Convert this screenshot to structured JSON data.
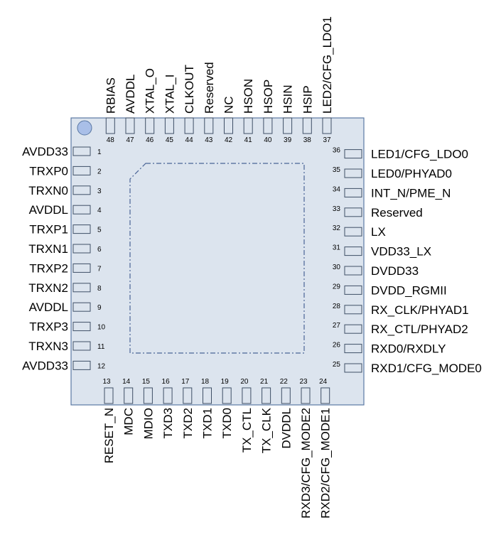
{
  "package": {
    "body_fill": "#dce4ee",
    "body_stroke": "#5a78a3",
    "pad_stroke": "#3f4f66",
    "pin1_marker_fill": "#a9bfe8",
    "exposed_pad_stroke": "#4a6496"
  },
  "pins": {
    "left": [
      {
        "num": "1",
        "name": "AVDD33"
      },
      {
        "num": "2",
        "name": "TRXP0"
      },
      {
        "num": "3",
        "name": "TRXN0"
      },
      {
        "num": "4",
        "name": "AVDDL"
      },
      {
        "num": "5",
        "name": "TRXP1"
      },
      {
        "num": "6",
        "name": "TRXN1"
      },
      {
        "num": "7",
        "name": "TRXP2"
      },
      {
        "num": "8",
        "name": "TRXN2"
      },
      {
        "num": "9",
        "name": "AVDDL"
      },
      {
        "num": "10",
        "name": "TRXP3"
      },
      {
        "num": "11",
        "name": "TRXN3"
      },
      {
        "num": "12",
        "name": "AVDD33"
      }
    ],
    "bottom": [
      {
        "num": "13",
        "name": "RESET_N"
      },
      {
        "num": "14",
        "name": "MDC"
      },
      {
        "num": "15",
        "name": "MDIO"
      },
      {
        "num": "16",
        "name": "TXD3"
      },
      {
        "num": "17",
        "name": "TXD2"
      },
      {
        "num": "18",
        "name": "TXD1"
      },
      {
        "num": "19",
        "name": "TXD0"
      },
      {
        "num": "20",
        "name": "TX_CTL"
      },
      {
        "num": "21",
        "name": "TX_CLK"
      },
      {
        "num": "22",
        "name": "DVDDL"
      },
      {
        "num": "23",
        "name": "RXD3/CFG_MODE2"
      },
      {
        "num": "24",
        "name": "RXD2/CFG_MODE1"
      }
    ],
    "right": [
      {
        "num": "25",
        "name": "RXD1/CFG_MODE0"
      },
      {
        "num": "26",
        "name": "RXD0/RXDLY"
      },
      {
        "num": "27",
        "name": "RX_CTL/PHYAD2"
      },
      {
        "num": "28",
        "name": "RX_CLK/PHYAD1"
      },
      {
        "num": "29",
        "name": "DVDD_RGMII"
      },
      {
        "num": "30",
        "name": "DVDD33"
      },
      {
        "num": "31",
        "name": "VDD33_LX"
      },
      {
        "num": "32",
        "name": "LX"
      },
      {
        "num": "33",
        "name": "Reserved"
      },
      {
        "num": "34",
        "name": "INT_N/PME_N"
      },
      {
        "num": "35",
        "name": "LED0/PHYAD0"
      },
      {
        "num": "36",
        "name": "LED1/CFG_LDO0"
      }
    ],
    "top": [
      {
        "num": "37",
        "name": "LED2/CFG_LDO1"
      },
      {
        "num": "38",
        "name": "HSIP"
      },
      {
        "num": "39",
        "name": "HSIN"
      },
      {
        "num": "40",
        "name": "HSOP"
      },
      {
        "num": "41",
        "name": "HSON"
      },
      {
        "num": "42",
        "name": "NC"
      },
      {
        "num": "43",
        "name": "Reserved"
      },
      {
        "num": "44",
        "name": "CLKOUT"
      },
      {
        "num": "45",
        "name": "XTAL_I"
      },
      {
        "num": "46",
        "name": "XTAL_O"
      },
      {
        "num": "47",
        "name": "AVDDL"
      },
      {
        "num": "48",
        "name": "RBIAS"
      }
    ]
  }
}
